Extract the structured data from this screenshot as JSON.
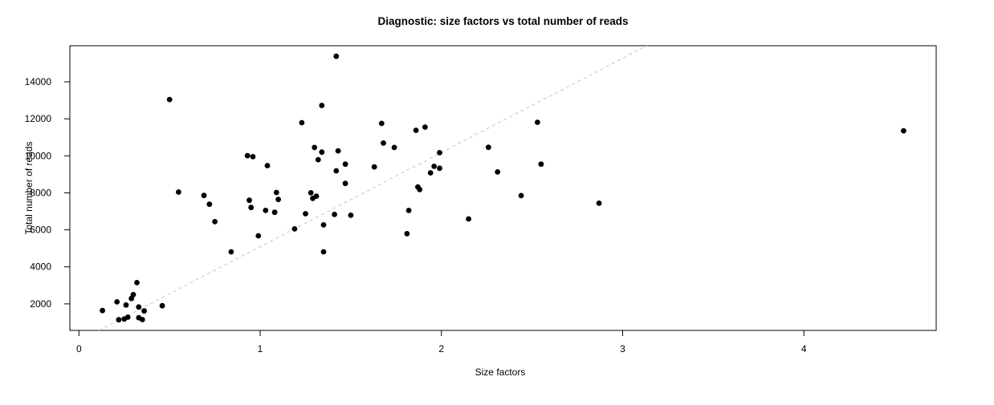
{
  "figure": {
    "background": "#ffffff",
    "foreground": "#000000"
  },
  "chart_data": {
    "type": "scatter",
    "title": "Diagnostic: size factors vs total number of reads",
    "xlabel": "Size factors",
    "ylabel": "Total number of reads",
    "xlim": [
      -0.05,
      4.73
    ],
    "ylim": [
      565,
      15950
    ],
    "x_ticks": [
      0,
      1,
      2,
      3,
      4
    ],
    "y_ticks": [
      2000,
      4000,
      6000,
      8000,
      10000,
      12000,
      14000
    ],
    "grid": false,
    "legend": null,
    "point_style": {
      "color": "#000000",
      "radius": 3.4,
      "shape": "filled-circle"
    },
    "reference_line": {
      "type": "abline",
      "intercept": 0,
      "slope": 5090,
      "style": "dashed",
      "color": "#c3c3c3"
    },
    "points": [
      [
        0.13,
        1640
      ],
      [
        0.21,
        2110
      ],
      [
        0.26,
        1940
      ],
      [
        0.29,
        2290
      ],
      [
        0.3,
        2500
      ],
      [
        0.32,
        3150
      ],
      [
        0.22,
        1140
      ],
      [
        0.25,
        1180
      ],
      [
        0.27,
        1280
      ],
      [
        0.33,
        1830
      ],
      [
        0.36,
        1620
      ],
      [
        0.33,
        1250
      ],
      [
        0.35,
        1150
      ],
      [
        0.46,
        1900
      ],
      [
        0.5,
        13040
      ],
      [
        0.55,
        8040
      ],
      [
        0.69,
        7860
      ],
      [
        0.72,
        7380
      ],
      [
        0.75,
        6440
      ],
      [
        0.84,
        4810
      ],
      [
        0.93,
        10010
      ],
      [
        0.96,
        9950
      ],
      [
        0.94,
        7600
      ],
      [
        0.95,
        7210
      ],
      [
        0.99,
        5680
      ],
      [
        1.03,
        7050
      ],
      [
        1.04,
        9470
      ],
      [
        1.08,
        6950
      ],
      [
        1.09,
        8020
      ],
      [
        1.1,
        7640
      ],
      [
        1.19,
        6050
      ],
      [
        1.23,
        11790
      ],
      [
        1.25,
        6870
      ],
      [
        1.28,
        8000
      ],
      [
        1.31,
        7820
      ],
      [
        1.29,
        7700
      ],
      [
        1.3,
        10450
      ],
      [
        1.32,
        9790
      ],
      [
        1.34,
        12720
      ],
      [
        1.34,
        10200
      ],
      [
        1.35,
        6270
      ],
      [
        1.35,
        4810
      ],
      [
        1.41,
        6830
      ],
      [
        1.42,
        15380
      ],
      [
        1.42,
        9190
      ],
      [
        1.43,
        10270
      ],
      [
        1.47,
        9550
      ],
      [
        1.47,
        8510
      ],
      [
        1.5,
        6790
      ],
      [
        1.63,
        9400
      ],
      [
        1.67,
        11750
      ],
      [
        1.68,
        10690
      ],
      [
        1.74,
        10450
      ],
      [
        1.81,
        5790
      ],
      [
        1.82,
        7050
      ],
      [
        1.86,
        11380
      ],
      [
        1.87,
        8320
      ],
      [
        1.88,
        8180
      ],
      [
        1.91,
        11550
      ],
      [
        1.94,
        9080
      ],
      [
        1.96,
        9430
      ],
      [
        1.99,
        9330
      ],
      [
        1.99,
        10170
      ],
      [
        2.15,
        6590
      ],
      [
        2.26,
        10460
      ],
      [
        2.31,
        9130
      ],
      [
        2.44,
        7850
      ],
      [
        2.53,
        11810
      ],
      [
        2.55,
        9550
      ],
      [
        2.87,
        7440
      ],
      [
        4.55,
        11350
      ]
    ]
  }
}
